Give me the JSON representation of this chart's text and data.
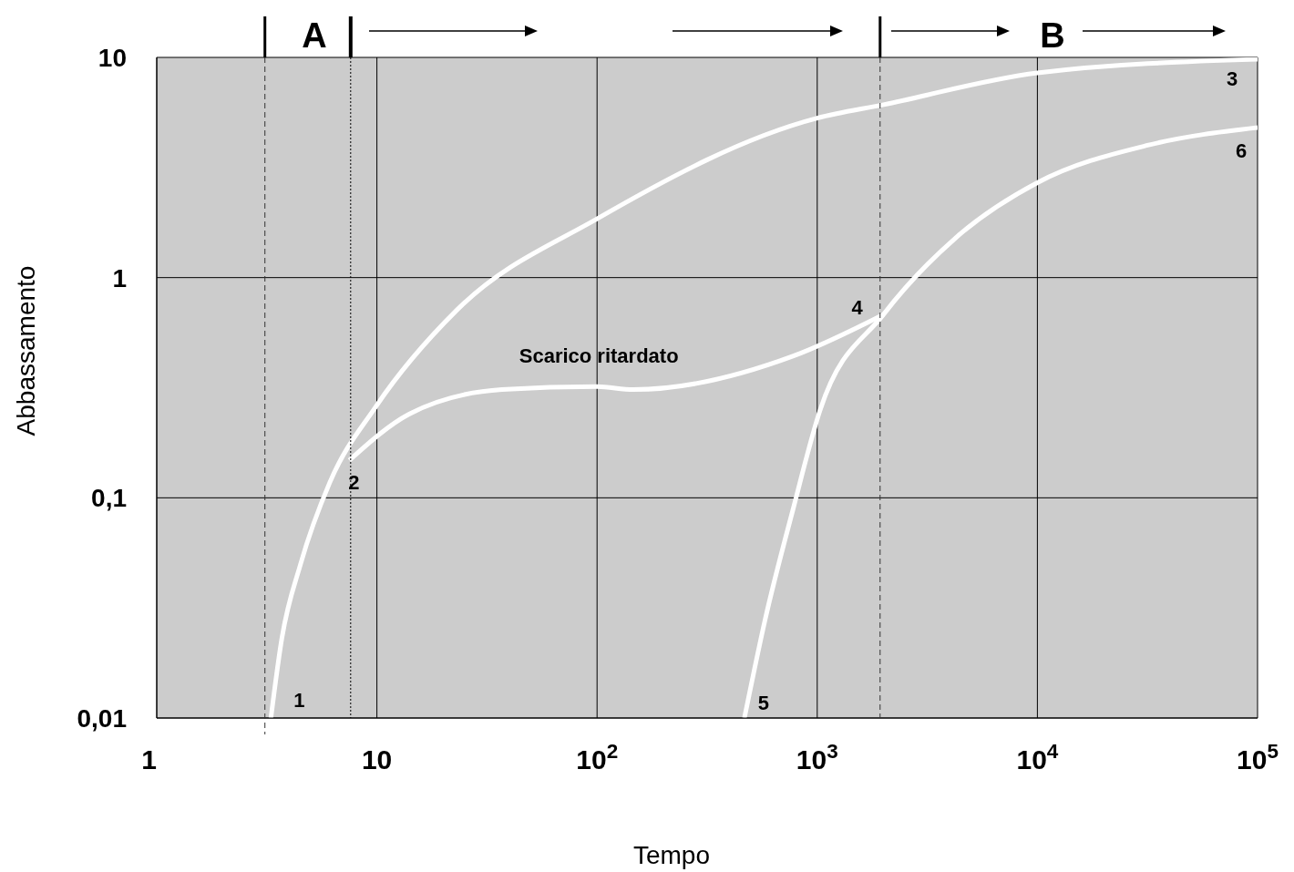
{
  "chart_data": {
    "type": "line",
    "xlabel": "Tempo",
    "ylabel": "Abbassamento",
    "log": "xy",
    "grid": true,
    "marker": "none",
    "line_style": "solid",
    "xlim": [
      1,
      100000
    ],
    "ylim": [
      0.01,
      10
    ],
    "xticks": [
      1,
      10,
      {
        "value": 100,
        "label": "10$^{2}$"
      },
      {
        "value": 1000,
        "label": "10$^{3}$"
      },
      {
        "value": 10000,
        "label": "10$^{4}$"
      },
      {
        "value": 100000,
        "label": "10$^{5}$"
      }
    ],
    "yticks": [
      {
        "value": 0.01,
        "label": "0,01"
      },
      {
        "value": 0.1,
        "label": "0,1"
      },
      1,
      10
    ],
    "series": [
      {
        "color": "#ffffff",
        "x": [
          3.3,
          3.7,
          4.5,
          6.1,
          9.9,
          23,
          100,
          1000,
          2000,
          10000,
          100000
        ],
        "values": [
          0.01,
          0.023,
          0.05,
          0.117,
          0.26,
          0.71,
          1.85,
          5.3,
          6.1,
          8.5,
          9.8
        ]
      },
      {
        "color": "#ffffff",
        "x": [
          7.5,
          14,
          37,
          100,
          146,
          775,
          2000
        ],
        "values": [
          0.148,
          0.24,
          0.31,
          0.32,
          0.31,
          0.44,
          0.68
        ]
      },
      {
        "color": "#ffffff",
        "x": [
          467,
          580,
          775,
          1030,
          2000,
          4300,
          10000,
          32000,
          100000
        ],
        "values": [
          0.01,
          0.028,
          0.088,
          0.25,
          0.68,
          1.53,
          2.7,
          4,
          4.8
        ]
      }
    ],
    "ref_lines": [
      {
        "axis": "x",
        "value": 3.1,
        "color": "#333333",
        "line_style": "dashed"
      },
      {
        "axis": "x",
        "value": 7.6,
        "color": "#000000",
        "line_style": "dotted"
      },
      {
        "axis": "x",
        "value": 1930,
        "color": "#333333",
        "line_style": "dashed"
      }
    ],
    "annotations": [
      "A",
      "B",
      {
        "text": "1",
        "x": 3.3,
        "y": 0.01
      },
      {
        "text": "2",
        "x": 7.5,
        "y": 0.15
      },
      {
        "text": "3",
        "x": 100000,
        "y": 9.8
      },
      {
        "text": "4",
        "x": 2000,
        "y": 0.68
      },
      {
        "text": "5",
        "x": 467,
        "y": 0.01
      },
      {
        "text": "6",
        "x": 100000,
        "y": 4.8
      },
      {
        "text": "Scarico ritardato",
        "x": 100,
        "y": 0.32
      }
    ]
  }
}
